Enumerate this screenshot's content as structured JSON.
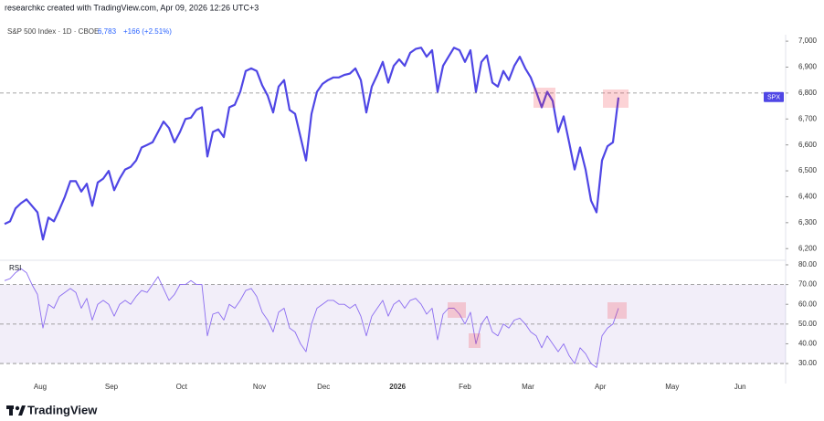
{
  "header": {
    "credit": "researchkc created with TradingView.com, Apr 09, 2026 12:26 UTC+3",
    "symbol": "S&P 500 Index · 1D · CBOE",
    "last": "6,783",
    "change": "+166 (+2.51%)"
  },
  "brand": "TradingView",
  "chart_data": [
    {
      "type": "line",
      "series": [
        {
          "name": "SPX",
          "color": "#4f46e5",
          "values": [
            6295,
            6305,
            6355,
            6375,
            6390,
            6365,
            6340,
            6235,
            6320,
            6305,
            6350,
            6400,
            6460,
            6460,
            6420,
            6450,
            6365,
            6455,
            6470,
            6500,
            6425,
            6470,
            6505,
            6515,
            6540,
            6590,
            6600,
            6610,
            6650,
            6690,
            6665,
            6610,
            6650,
            6700,
            6705,
            6735,
            6745,
            6555,
            6650,
            6660,
            6630,
            6745,
            6755,
            6805,
            6885,
            6895,
            6885,
            6830,
            6790,
            6725,
            6825,
            6850,
            6735,
            6720,
            6630,
            6540,
            6720,
            6805,
            6835,
            6850,
            6860,
            6860,
            6870,
            6875,
            6895,
            6850,
            6725,
            6825,
            6870,
            6920,
            6840,
            6905,
            6930,
            6905,
            6955,
            6970,
            6975,
            6940,
            6965,
            6805,
            6905,
            6940,
            6975,
            6965,
            6920,
            6965,
            6805,
            6920,
            6945,
            6840,
            6825,
            6885,
            6850,
            6905,
            6940,
            6895,
            6860,
            6805,
            6745,
            6805,
            6770,
            6650,
            6710,
            6610,
            6505,
            6590,
            6505,
            6385,
            6340,
            6540,
            6595,
            6610,
            6783
          ]
        }
      ],
      "xlim": [
        0,
        142.5
      ],
      "ylim": [
        6155,
        7025
      ],
      "yticks": [
        {
          "value": 6200,
          "label": "6,200"
        },
        {
          "value": 6300,
          "label": "6,300"
        },
        {
          "value": 6400,
          "label": "6,400"
        },
        {
          "value": 6500,
          "label": "6,500"
        },
        {
          "value": 6600,
          "label": "6,600"
        },
        {
          "value": 6700,
          "label": "6,700"
        },
        {
          "value": 6800,
          "label": "6,800"
        },
        {
          "value": 6900,
          "label": "6,900"
        },
        {
          "value": 7000,
          "label": "7,000"
        }
      ],
      "hlines": [
        6800
      ]
    },
    {
      "type": "line",
      "series": [
        {
          "name": "RSI",
          "color": "#8b6cf0",
          "values": [
            72,
            73,
            76,
            78,
            76,
            70,
            65,
            48,
            60,
            58,
            64,
            66,
            68,
            66,
            58,
            63,
            52,
            60,
            62,
            60,
            54,
            60,
            62,
            60,
            64,
            67,
            66,
            70,
            74,
            68,
            62,
            65,
            70,
            70,
            72,
            70,
            70,
            44,
            55,
            56,
            52,
            60,
            58,
            62,
            67,
            68,
            64,
            56,
            52,
            46,
            56,
            58,
            48,
            46,
            40,
            36,
            50,
            58,
            60,
            62,
            62,
            60,
            60,
            58,
            60,
            54,
            44,
            54,
            58,
            62,
            54,
            60,
            62,
            58,
            62,
            63,
            60,
            55,
            58,
            42,
            55,
            58,
            58,
            55,
            50,
            56,
            40,
            50,
            54,
            46,
            44,
            50,
            48,
            52,
            53,
            50,
            46,
            44,
            38,
            44,
            40,
            36,
            40,
            34,
            30,
            38,
            35,
            30,
            28,
            44,
            48,
            50,
            58
          ]
        }
      ],
      "xlim": [
        0,
        142.5
      ],
      "ylim": [
        26.8,
        82.3
      ],
      "yticks": [
        {
          "value": 30,
          "label": "30.00"
        },
        {
          "value": 40,
          "label": "40.00"
        },
        {
          "value": 50,
          "label": "50.00"
        },
        {
          "value": 60,
          "label": "60.00"
        },
        {
          "value": 70,
          "label": "70.00"
        },
        {
          "value": 80,
          "label": "80.00"
        }
      ],
      "hlines": [
        70,
        50,
        30
      ],
      "band": [
        30,
        70
      ],
      "xticks": [
        {
          "value": 6.5,
          "label": "Aug"
        },
        {
          "value": 19.5,
          "label": "Sep"
        },
        {
          "value": 32.3,
          "label": "Oct"
        },
        {
          "value": 46.5,
          "label": "Nov"
        },
        {
          "value": 58.2,
          "label": "Dec"
        },
        {
          "value": 71.7,
          "label": "2026"
        },
        {
          "value": 84,
          "label": "Feb"
        },
        {
          "value": 95.5,
          "label": "Mar"
        },
        {
          "value": 108.7,
          "label": "Apr"
        },
        {
          "value": 121.8,
          "label": "May"
        },
        {
          "value": 134.2,
          "label": "Jun"
        }
      ]
    }
  ]
}
